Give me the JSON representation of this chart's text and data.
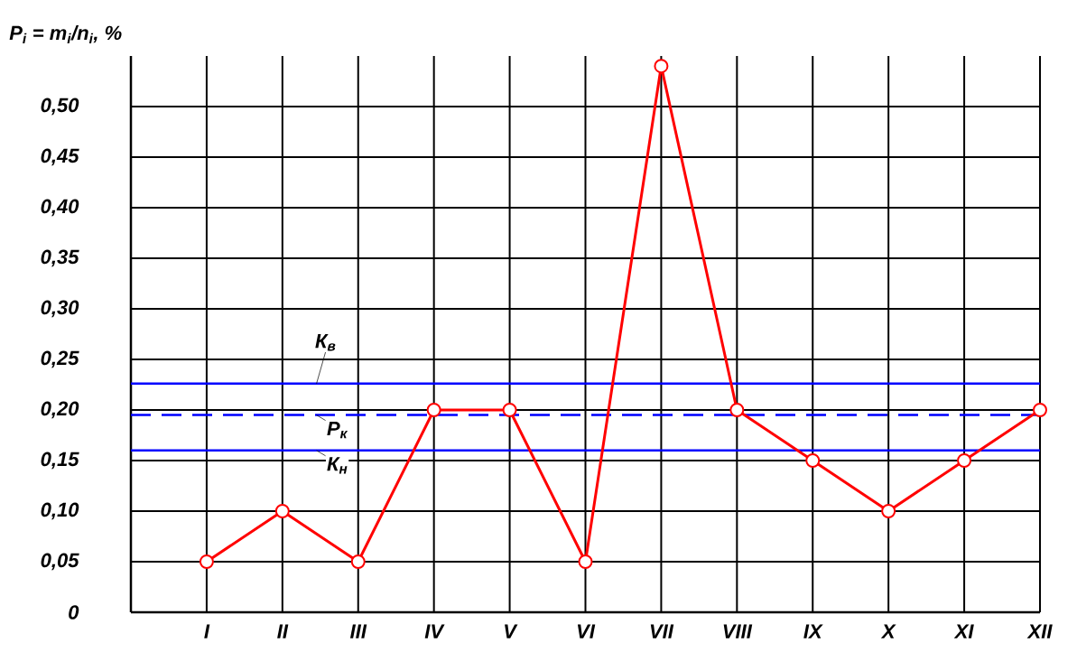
{
  "chart_data": {
    "type": "line",
    "ylabel": "P$_{i}$ = m$_{i}$/n$_{i}$, %",
    "categories": [
      "I",
      "II",
      "III",
      "IV",
      "V",
      "VI",
      "VII",
      "VIII",
      "IX",
      "X",
      "XI",
      "XII"
    ],
    "series": [
      {
        "color": "#ff0000",
        "values": [
          0.05,
          0.1,
          0.05,
          0.2,
          0.2,
          0.05,
          0.54,
          0.2,
          0.15,
          0.1,
          0.15,
          0.2
        ]
      }
    ],
    "ylim": [
      0,
      0.55
    ],
    "yticks": [
      0,
      {
        "value": 0.05,
        "label": "0,05"
      },
      {
        "value": 0.1,
        "label": "0,10"
      },
      {
        "value": 0.15,
        "label": "0,15"
      },
      {
        "value": 0.2,
        "label": "0,20"
      },
      {
        "value": 0.25,
        "label": "0,25"
      },
      {
        "value": 0.3,
        "label": "0,30"
      },
      {
        "value": 0.35,
        "label": "0,35"
      },
      {
        "value": 0.4,
        "label": "0,40"
      },
      {
        "value": 0.45,
        "label": "0,45"
      },
      {
        "value": 0.5,
        "label": "0,50"
      }
    ],
    "ref_lines": [
      {
        "axis": "y",
        "value": 0.226,
        "label": "К$_{в}$",
        "color": "#0000ff",
        "line_style": "solid"
      },
      {
        "axis": "y",
        "value": 0.195,
        "label": "Р$_{к}$",
        "color": "#0000ff",
        "line_style": "dashed"
      },
      {
        "axis": "y",
        "value": 0.16,
        "label": "К$_{н}$",
        "color": "#0000ff",
        "line_style": "solid"
      }
    ],
    "grid": true,
    "marker": "circle",
    "line_style": "solid"
  }
}
